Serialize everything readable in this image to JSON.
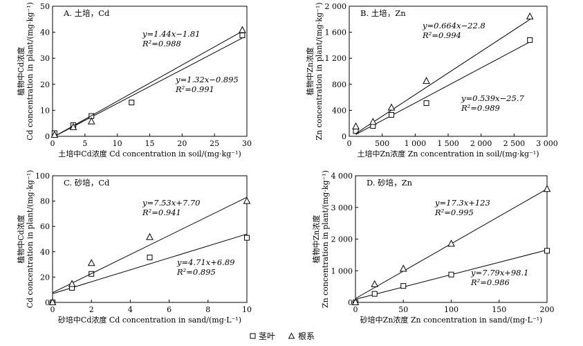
{
  "legend": {
    "items": [
      {
        "marker": "square",
        "label": "茎叶"
      },
      {
        "marker": "triangle",
        "label": "根系"
      }
    ]
  },
  "chart_data": [
    {
      "id": "A",
      "type": "scatter",
      "title": "A. 土培，Cd",
      "xlabel": "土培中Cd浓度 Cd concentration in soil/(mg·kg⁻¹)",
      "ylabel_cn": "植物中Cd浓度",
      "ylabel_en": "Cd concentration in plant/(mg·kg⁻¹)",
      "xlim": [
        0,
        30
      ],
      "ylim": [
        0,
        50
      ],
      "xticks": [
        0,
        5,
        10,
        15,
        20,
        25,
        30
      ],
      "yticks": [
        0,
        10,
        20,
        30,
        40,
        50
      ],
      "xtick_labels": [
        "0",
        "5",
        "10",
        "15",
        "20",
        "25",
        "30"
      ],
      "ytick_labels": [
        "0",
        "10",
        "20",
        "30",
        "40",
        "50"
      ],
      "series": [
        {
          "marker": "square",
          "x": [
            0.3,
            3.2,
            6.0,
            12.2,
            29.3
          ],
          "y": [
            1.2,
            4.3,
            7.8,
            13.0,
            38.8
          ],
          "fit": {
            "slope": 1.32,
            "intercept": -0.895,
            "equation": "y=1.32x−0.895",
            "r2": "R²=0.991"
          }
        },
        {
          "marker": "triangle",
          "x": [
            0.3,
            3.2,
            6.0,
            29.3
          ],
          "y": [
            0.5,
            3.5,
            5.7,
            40.8
          ],
          "fit": {
            "slope": 1.44,
            "intercept": -1.81,
            "equation": "y=1.44x−1.81",
            "r2": "R²=0.988"
          }
        }
      ]
    },
    {
      "id": "B",
      "type": "scatter",
      "title": "B. 土培，Zn",
      "xlabel": "土培中Zn浓度 Zn concentration in soil/(mg·kg⁻¹)",
      "ylabel_cn": "植物中Zn浓度",
      "ylabel_en": "Zn concentration in plant/(mg·kg⁻¹)",
      "xlim": [
        0,
        3000
      ],
      "ylim": [
        0,
        2000
      ],
      "xticks": [
        0,
        500,
        1000,
        1500,
        2000,
        2500,
        3000
      ],
      "yticks": [
        0,
        400,
        800,
        1200,
        1600,
        2000
      ],
      "xtick_labels": [
        "0",
        "500",
        "1 000",
        "1 500",
        "2 000",
        "2 500",
        "3 000"
      ],
      "ytick_labels": [
        "0",
        "400",
        "800",
        "1 200",
        "1 600",
        "2 000"
      ],
      "series": [
        {
          "marker": "square",
          "x": [
            100,
            360,
            640,
            1170,
            2740
          ],
          "y": [
            80,
            160,
            330,
            510,
            1480
          ],
          "fit": {
            "slope": 0.539,
            "intercept": -25.7,
            "equation": "y=0.539x−25.7",
            "r2": "R²=0.989"
          }
        },
        {
          "marker": "triangle",
          "x": [
            100,
            360,
            640,
            1170,
            2740
          ],
          "y": [
            150,
            220,
            440,
            850,
            1840
          ],
          "fit": {
            "slope": 0.664,
            "intercept": -22.8,
            "equation": "y=0.664x−22.8",
            "r2": "R²=0.994"
          }
        }
      ]
    },
    {
      "id": "C",
      "type": "scatter",
      "title": "C. 砂培，Cd",
      "xlabel": "砂培中Cd浓度 Cd concentration in sand/(mg·L⁻¹)",
      "ylabel_cn": "植物中Cd浓度",
      "ylabel_en": "Cd concentration in plant/(mg·kg⁻¹)",
      "xlim": [
        0,
        10
      ],
      "ylim": [
        0,
        100
      ],
      "xticks": [
        0,
        2,
        4,
        6,
        8,
        10
      ],
      "yticks": [
        0,
        20,
        40,
        60,
        80,
        100
      ],
      "xtick_labels": [
        "0",
        "2",
        "4",
        "6",
        "8",
        "10"
      ],
      "ytick_labels": [
        "0",
        "20",
        "40",
        "60",
        "80",
        "100"
      ],
      "series": [
        {
          "marker": "square",
          "x": [
            0,
            1,
            2,
            5,
            10
          ],
          "y": [
            0,
            11.5,
            22.5,
            35.5,
            51
          ],
          "fit": {
            "slope": 4.71,
            "intercept": 6.89,
            "equation": "y=4.71x+6.89",
            "r2": "R²=0.895"
          }
        },
        {
          "marker": "triangle",
          "x": [
            0,
            1,
            2,
            5,
            10
          ],
          "y": [
            0,
            14.5,
            31,
            51.5,
            80
          ],
          "fit": {
            "slope": 7.53,
            "intercept": 7.7,
            "equation": "y=7.53x+7.70",
            "r2": "R²=0.941"
          }
        }
      ]
    },
    {
      "id": "D",
      "type": "scatter",
      "title": "D. 砂培，Zn",
      "xlabel": "砂培中Zn浓度 Zn concentration in sand/(mg·L⁻¹)",
      "ylabel_cn": "植物中Zn浓度",
      "ylabel_en": "Zn concentration in plant/(mg·kg⁻¹)",
      "xlim": [
        0,
        200
      ],
      "ylim": [
        0,
        4000
      ],
      "xticks": [
        0,
        50,
        100,
        150,
        200
      ],
      "yticks": [
        0,
        1000,
        2000,
        3000,
        4000
      ],
      "xtick_labels": [
        "0",
        "50",
        "100",
        "150",
        "200"
      ],
      "ytick_labels": [
        "0",
        "1 000",
        "2 000",
        "3 000",
        "4 000"
      ],
      "series": [
        {
          "marker": "square",
          "x": [
            0,
            20,
            50,
            100,
            200
          ],
          "y": [
            0,
            270,
            520,
            880,
            1630
          ],
          "fit": {
            "slope": 7.79,
            "intercept": 98.1,
            "equation": "y=7.79x+98.1",
            "r2": "R²=0.986"
          }
        },
        {
          "marker": "triangle",
          "x": [
            0,
            20,
            50,
            100,
            200
          ],
          "y": [
            0,
            570,
            1060,
            1850,
            3580
          ],
          "fit": {
            "slope": 17.3,
            "intercept": 123,
            "equation": "y=17.3x+123",
            "r2": "R²=0.995"
          }
        }
      ]
    }
  ]
}
